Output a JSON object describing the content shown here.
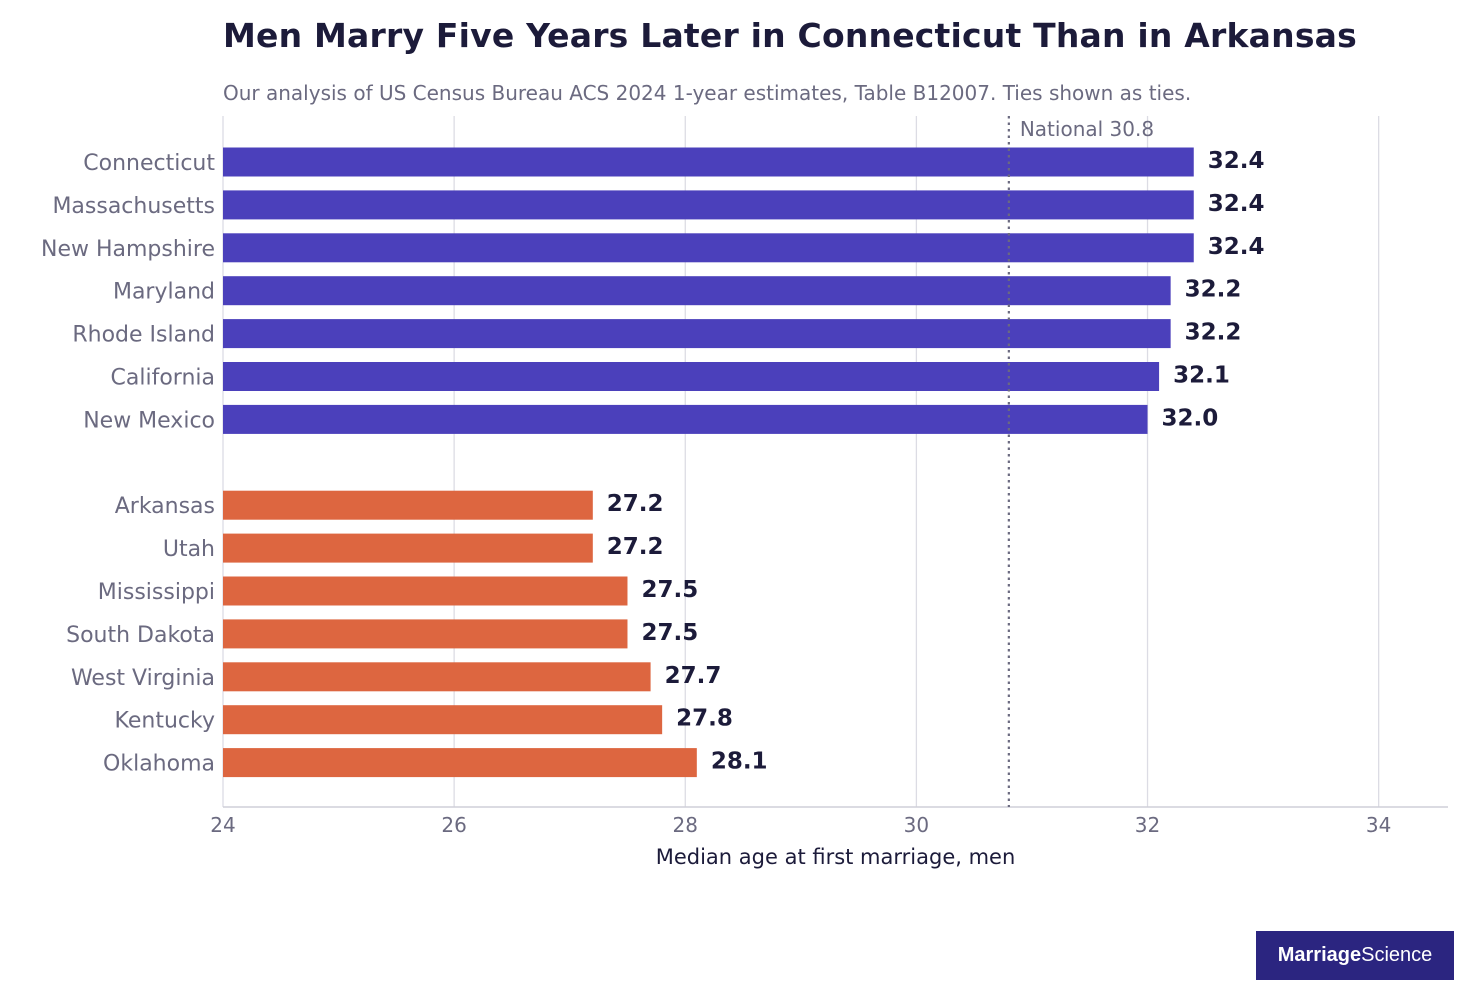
{
  "title": "Men Marry Five Years Later in Connecticut Than in Arkansas",
  "subtitle": "Our analysis of US Census Bureau ACS 2024 1-year estimates, Table B12007. Ties shown as ties.",
  "logo": {
    "bold": "Marriage",
    "regular": "Science"
  },
  "chart_data": {
    "type": "bar",
    "orientation": "horizontal",
    "xlabel": "Median age at first marriage, men",
    "xlim": [
      24,
      34.6
    ],
    "xticks": [
      24,
      26,
      28,
      30,
      32,
      34
    ],
    "grid": true,
    "reference_line": {
      "label": "National 30.8",
      "value": 30.8
    },
    "groups": [
      {
        "color": "#4b40bb",
        "categories": [
          "Connecticut",
          "Massachusetts",
          "New Hampshire",
          "Maryland",
          "Rhode Island",
          "California",
          "New Mexico"
        ],
        "values": [
          32.4,
          32.4,
          32.4,
          32.2,
          32.2,
          32.1,
          32.0
        ],
        "labels": [
          "32.4",
          "32.4",
          "32.4",
          "32.2",
          "32.2",
          "32.1",
          "32.0"
        ]
      },
      {
        "color": "#dd6640",
        "categories": [
          "Arkansas",
          "Utah",
          "Mississippi",
          "South Dakota",
          "West Virginia",
          "Kentucky",
          "Oklahoma"
        ],
        "values": [
          27.2,
          27.2,
          27.5,
          27.5,
          27.7,
          27.8,
          28.1
        ],
        "labels": [
          "27.2",
          "27.2",
          "27.5",
          "27.5",
          "27.7",
          "27.8",
          "28.1"
        ]
      }
    ]
  }
}
